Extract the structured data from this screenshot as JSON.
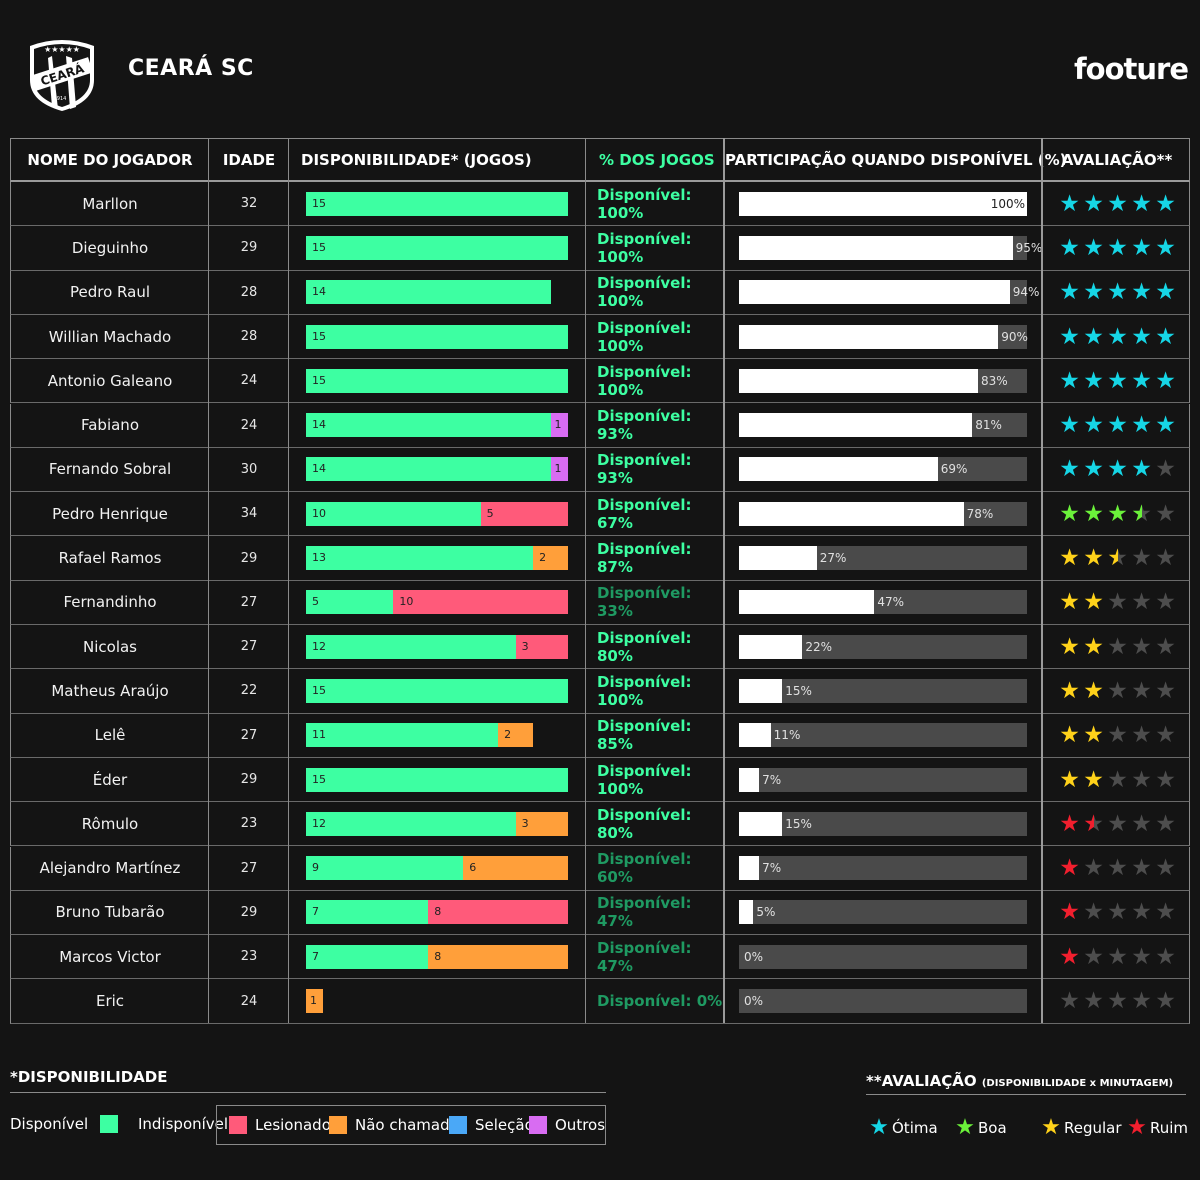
{
  "header": {
    "club_name": "CEARÁ SC",
    "brand": "footure",
    "crest_text": "CEARÁ",
    "crest_year": "1914"
  },
  "table": {
    "headers": {
      "name": "NOME DO JOGADOR",
      "age": "IDADE",
      "availability": "DISPONIBILIDADE* (JOGOS)",
      "pct": "% DOS JOGOS",
      "participation": "PARTICIPAÇÃO QUANDO DISPONÍVEL (%)",
      "rating": "AVALIAÇÃO**"
    }
  },
  "chart_data": {
    "type": "table",
    "total_games": 15,
    "colors": {
      "available": "#3dffa2",
      "injured": "#ff5a7a",
      "not_called": "#ff9f3a",
      "national_team": "#4aa8f7",
      "other": "#d86cf2",
      "star_otima": "#16d6e6",
      "star_boa": "#6bf23a",
      "star_regular": "#ffd21a",
      "star_ruim": "#f21f2e",
      "star_empty": "#4d4d4d"
    },
    "players": [
      {
        "name": "Marllon",
        "age": "32",
        "available": 15,
        "injured": 0,
        "not_called": 0,
        "other": 0,
        "pct_label": "Disponível: 100%",
        "participation": 100,
        "rating": 5,
        "tier": "otima"
      },
      {
        "name": "Dieguinho",
        "age": "29",
        "available": 15,
        "injured": 0,
        "not_called": 0,
        "other": 0,
        "pct_label": "Disponível: 100%",
        "participation": 95,
        "rating": 5,
        "tier": "otima"
      },
      {
        "name": "Pedro Raul",
        "age": "28",
        "available": 14,
        "injured": 0,
        "not_called": 0,
        "other": 0,
        "pct_label": "Disponível: 100%",
        "participation": 94,
        "rating": 5,
        "tier": "otima"
      },
      {
        "name": "Willian Machado",
        "age": "28",
        "available": 15,
        "injured": 0,
        "not_called": 0,
        "other": 0,
        "pct_label": "Disponível: 100%",
        "participation": 90,
        "rating": 5,
        "tier": "otima"
      },
      {
        "name": "Antonio Galeano",
        "age": "24",
        "available": 15,
        "injured": 0,
        "not_called": 0,
        "other": 0,
        "pct_label": "Disponível: 100%",
        "participation": 83,
        "rating": 5,
        "tier": "otima"
      },
      {
        "name": "Fabiano",
        "age": "24",
        "available": 14,
        "injured": 0,
        "not_called": 0,
        "other": 1,
        "pct_label": "Disponível: 93%",
        "participation": 81,
        "rating": 5,
        "tier": "otima"
      },
      {
        "name": "Fernando Sobral",
        "age": "30",
        "available": 14,
        "injured": 0,
        "not_called": 0,
        "other": 1,
        "pct_label": "Disponível: 93%",
        "participation": 69,
        "rating": 4,
        "tier": "otima"
      },
      {
        "name": "Pedro Henrique",
        "age": "34",
        "available": 10,
        "injured": 5,
        "not_called": 0,
        "other": 0,
        "pct_label": "Disponível: 67%",
        "participation": 78,
        "rating": 3.5,
        "tier": "boa"
      },
      {
        "name": "Rafael Ramos",
        "age": "29",
        "available": 13,
        "injured": 0,
        "not_called": 2,
        "other": 0,
        "pct_label": "Disponível: 87%",
        "participation": 27,
        "rating": 2.5,
        "tier": "regular"
      },
      {
        "name": "Fernandinho",
        "age": "27",
        "available": 5,
        "injured": 10,
        "not_called": 0,
        "other": 0,
        "pct_label": "Disponível: 33%",
        "participation": 47,
        "rating": 2,
        "tier": "regular"
      },
      {
        "name": "Nicolas",
        "age": "27",
        "available": 12,
        "injured": 3,
        "not_called": 0,
        "other": 0,
        "pct_label": "Disponível: 80%",
        "participation": 22,
        "rating": 2,
        "tier": "regular"
      },
      {
        "name": "Matheus Araújo",
        "age": "22",
        "available": 15,
        "injured": 0,
        "not_called": 0,
        "other": 0,
        "pct_label": "Disponível: 100%",
        "participation": 15,
        "rating": 2,
        "tier": "regular"
      },
      {
        "name": "Lelê",
        "age": "27",
        "available": 11,
        "injured": 0,
        "not_called": 2,
        "other": 0,
        "pct_label": "Disponível: 85%",
        "participation": 11,
        "rating": 2,
        "tier": "regular"
      },
      {
        "name": "Éder",
        "age": "29",
        "available": 15,
        "injured": 0,
        "not_called": 0,
        "other": 0,
        "pct_label": "Disponível: 100%",
        "participation": 7,
        "rating": 2,
        "tier": "regular"
      },
      {
        "name": "Rômulo",
        "age": "23",
        "available": 12,
        "injured": 0,
        "not_called": 3,
        "other": 0,
        "pct_label": "Disponível: 80%",
        "participation": 15,
        "rating": 1.5,
        "tier": "ruim"
      },
      {
        "name": "Alejandro Martínez",
        "age": "27",
        "available": 9,
        "injured": 0,
        "not_called": 6,
        "other": 0,
        "pct_label": "Disponível: 60%",
        "participation": 7,
        "rating": 1,
        "tier": "ruim"
      },
      {
        "name": "Bruno Tubarão",
        "age": "29",
        "available": 7,
        "injured": 8,
        "not_called": 0,
        "other": 0,
        "pct_label": "Disponível: 47%",
        "participation": 5,
        "rating": 1,
        "tier": "ruim"
      },
      {
        "name": "Marcos Victor",
        "age": "23",
        "available": 7,
        "injured": 0,
        "not_called": 8,
        "other": 0,
        "pct_label": "Disponível: 47%",
        "participation": 0,
        "rating": 1,
        "tier": "ruim"
      },
      {
        "name": "Eric",
        "age": "24",
        "available": 0,
        "injured": 0,
        "not_called": 1,
        "other": 0,
        "pct_label": "Disponível: 0%",
        "participation": 0,
        "rating": 0,
        "tier": "ruim"
      }
    ]
  },
  "legend_availability": {
    "title": "*DISPONIBILIDADE",
    "available": "Disponível",
    "unavailable": "Indisponível",
    "injured": "Lesionado",
    "not_called": "Não chamado",
    "national_team": "Seleção",
    "other": "Outros"
  },
  "legend_rating": {
    "title": "**AVALIAÇÃO",
    "subtitle": "(DISPONIBILIDADE x MINUTAGEM)",
    "otima": "Ótima",
    "boa": "Boa",
    "regular": "Regular",
    "ruim": "Ruim"
  }
}
